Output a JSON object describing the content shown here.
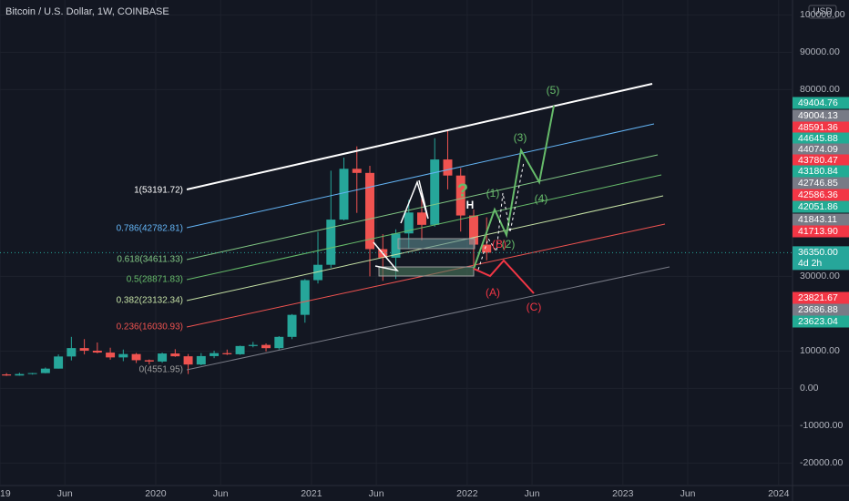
{
  "chart_data": {
    "type": "candlestick",
    "title": "Bitcoin / U.S. Dollar, 1W, COINBASE",
    "currency_button": "USD",
    "up_color": "#26a69a",
    "down_color": "#ef5350",
    "x": [
      "2019-01",
      "2019-02",
      "2019-03",
      "2019-04",
      "2019-05",
      "2019-06",
      "2019-07",
      "2019-08",
      "2019-09",
      "2019-10",
      "2019-11",
      "2019-12",
      "2020-01",
      "2020-02",
      "2020-03",
      "2020-04",
      "2020-05",
      "2020-06",
      "2020-07",
      "2020-08",
      "2020-09",
      "2020-10",
      "2020-11",
      "2020-12",
      "2021-01",
      "2021-02",
      "2021-03",
      "2021-04",
      "2021-05",
      "2021-06",
      "2021-07",
      "2021-08",
      "2021-09",
      "2021-10",
      "2021-11",
      "2021-12",
      "2022-01",
      "2022-02"
    ],
    "open": [
      3750,
      3450,
      3850,
      4100,
      5300,
      8550,
      10800,
      10100,
      9600,
      8300,
      9200,
      7550,
      7200,
      9350,
      8600,
      6400,
      8650,
      9450,
      9140,
      11350,
      11650,
      10780,
      13800,
      19700,
      28990,
      33100,
      45200,
      58800,
      57700,
      37300,
      35000,
      41500,
      47100,
      43800,
      61300,
      57000,
      46300,
      38500
    ],
    "high": [
      4100,
      4200,
      4150,
      5600,
      9100,
      13800,
      13200,
      12300,
      10900,
      10400,
      9500,
      7750,
      9600,
      10500,
      9200,
      9450,
      10100,
      10400,
      11450,
      12450,
      12050,
      14000,
      19900,
      29300,
      41900,
      58300,
      61800,
      64800,
      59600,
      41300,
      42600,
      50500,
      52900,
      67000,
      69000,
      59000,
      47900,
      45800
    ],
    "low": [
      3350,
      3400,
      3700,
      4050,
      5300,
      7500,
      9100,
      9400,
      7700,
      7300,
      6800,
      6450,
      6850,
      8450,
      3850,
      6200,
      8100,
      8950,
      9000,
      11000,
      9900,
      10400,
      13200,
      17600,
      28100,
      32300,
      45000,
      47000,
      30000,
      28800,
      29300,
      37400,
      39600,
      43300,
      53300,
      42000,
      33000,
      34300
    ],
    "close": [
      3450,
      3850,
      4100,
      5300,
      8550,
      10800,
      10100,
      9600,
      8300,
      9200,
      7550,
      7200,
      9350,
      8600,
      6400,
      8650,
      9450,
      9140,
      11350,
      11650,
      10780,
      13800,
      19700,
      28990,
      33100,
      45200,
      58800,
      57700,
      37300,
      35000,
      41500,
      47100,
      43800,
      61300,
      57000,
      46300,
      38500,
      36350
    ],
    "xlim": [
      "2019-01",
      "2024-02"
    ],
    "xticks": [
      {
        "value": "2019-01",
        "label": "19"
      },
      {
        "value": "2019-06",
        "label": "Jun"
      },
      {
        "value": "2020-01",
        "label": "2020"
      },
      {
        "value": "2020-06",
        "label": "Jun"
      },
      {
        "value": "2021-01",
        "label": "2021"
      },
      {
        "value": "2021-06",
        "label": "Jun"
      },
      {
        "value": "2022-01",
        "label": "2022"
      },
      {
        "value": "2022-06",
        "label": "Jun"
      },
      {
        "value": "2023-01",
        "label": "2023"
      },
      {
        "value": "2023-06",
        "label": "Jun"
      },
      {
        "value": "2024-01",
        "label": "2024"
      }
    ],
    "ylim": [
      -26000,
      104000
    ],
    "yticks": [
      {
        "value": 100000,
        "label": "100000.00"
      },
      {
        "value": 90000,
        "label": "90000.00"
      },
      {
        "value": 80000,
        "label": "80000.00"
      },
      {
        "value": 30000,
        "label": "30000.00"
      },
      {
        "value": 10000,
        "label": "10000.00"
      },
      {
        "value": 0,
        "label": "0.00"
      },
      {
        "value": -10000,
        "label": "-10000.00"
      },
      {
        "value": -20000,
        "label": "-20000.00"
      }
    ],
    "grid": true,
    "last_price": {
      "value": 36350,
      "label": "36350.00",
      "countdown": "4d 2h",
      "color": "#26a69a"
    },
    "price_tags": [
      {
        "label": "49404.76",
        "color": "#22ab94"
      },
      {
        "label": "49004.13",
        "color": "#787b86"
      },
      {
        "label": "48591.36",
        "color": "#f23645"
      },
      {
        "label": "44645.88",
        "color": "#22ab94"
      },
      {
        "label": "44074.09",
        "color": "#787b86"
      },
      {
        "label": "43780.47",
        "color": "#f23645"
      },
      {
        "label": "43180.84",
        "color": "#22ab94"
      },
      {
        "label": "42746.85",
        "color": "#787b86"
      },
      {
        "label": "42586.36",
        "color": "#f23645"
      },
      {
        "label": "42051.86",
        "color": "#22ab94"
      },
      {
        "label": "41843.11",
        "color": "#787b86"
      },
      {
        "label": "41713.90",
        "color": "#f23645"
      },
      {
        "label": "23821.67",
        "color": "#f23645"
      },
      {
        "label": "23686.88",
        "color": "#787b86"
      },
      {
        "label": "23623.04",
        "color": "#22ab94"
      }
    ],
    "fib_levels": [
      {
        "label": "1(53191.72)",
        "color": "#ffffff"
      },
      {
        "label": "0.786(42782.81)",
        "color": "#64b5f6"
      },
      {
        "label": "0.618(34611.33)",
        "color": "#81c784"
      },
      {
        "label": "0.5(28871.83)",
        "color": "#66bb6a"
      },
      {
        "label": "0.382(23132.34)",
        "color": "#c5e1a5"
      },
      {
        "label": "0.236(16030.93)",
        "color": "#ef5350"
      },
      {
        "label": "0(4551.95)",
        "color": "#9e9e9e"
      }
    ],
    "wave_labels": [
      {
        "label": "(5)",
        "color": "#66bb6a"
      },
      {
        "label": "(3)",
        "color": "#66bb6a"
      },
      {
        "label": "(1)",
        "color": "#66bb6a"
      },
      {
        "label": "(4)",
        "color": "#66bb6a"
      },
      {
        "label": "(2)",
        "color": "#66bb6a"
      },
      {
        "label": "(B)",
        "color": "#f23645"
      },
      {
        "label": "(A)",
        "color": "#f23645"
      },
      {
        "label": "(C)",
        "color": "#f23645"
      },
      {
        "label": "H",
        "color": "#ffffff"
      },
      {
        "label": "?",
        "color": "#66bb6a"
      }
    ]
  }
}
